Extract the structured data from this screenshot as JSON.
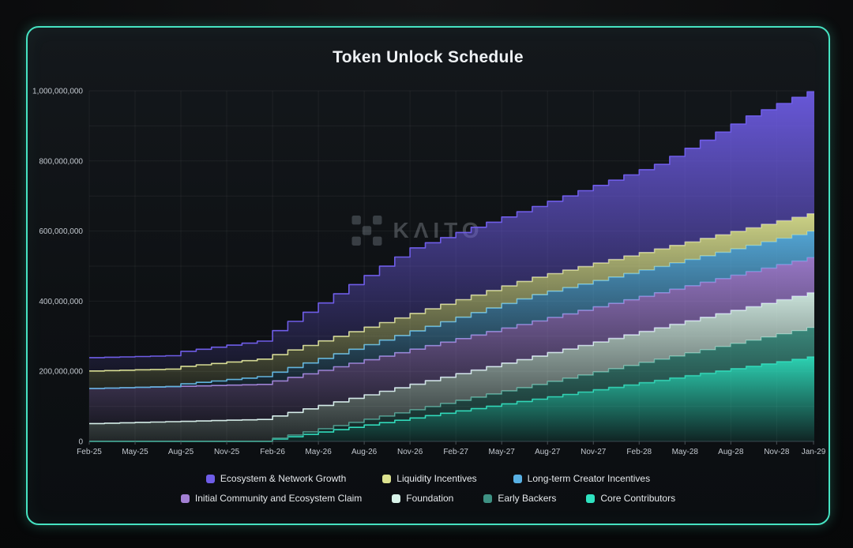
{
  "card": {
    "title": "Token Unlock Schedule",
    "watermark_text": "KΛITO",
    "border_color": "#46e3c2",
    "background": "#0e1114"
  },
  "y_axis": {
    "ticks": [
      {
        "value": 0,
        "label": "0"
      },
      {
        "value": 200,
        "label": "200,000,000"
      },
      {
        "value": 400,
        "label": "400,000,000"
      },
      {
        "value": 600,
        "label": "600,000,000"
      },
      {
        "value": 800,
        "label": "800,000,000"
      },
      {
        "value": 1000,
        "label": "1,000,000,000"
      }
    ],
    "gridline_step": 100,
    "max": 1000
  },
  "x_axis": {
    "tick_every_months": 3
  },
  "chart_data": {
    "type": "area",
    "variant": "stacked-step",
    "unit": "millions of tokens",
    "title": "Token Unlock Schedule",
    "ylim": [
      0,
      1000
    ],
    "grid": true,
    "legend_position": "bottom",
    "x": [
      "Feb-25",
      "Mar-25",
      "Apr-25",
      "May-25",
      "Jun-25",
      "Jul-25",
      "Aug-25",
      "Sep-25",
      "Oct-25",
      "Nov-25",
      "Dec-25",
      "Jan-26",
      "Feb-26",
      "Mar-26",
      "Apr-26",
      "May-26",
      "Jun-26",
      "Jul-26",
      "Aug-26",
      "Sep-26",
      "Oct-26",
      "Nov-26",
      "Dec-26",
      "Jan-27",
      "Feb-27",
      "Mar-27",
      "Apr-27",
      "May-27",
      "Jun-27",
      "Jul-27",
      "Aug-27",
      "Sep-27",
      "Oct-27",
      "Nov-27",
      "Dec-27",
      "Jan-28",
      "Feb-28",
      "Mar-28",
      "Apr-28",
      "May-28",
      "Jun-28",
      "Jul-28",
      "Aug-28",
      "Sep-28",
      "Oct-28",
      "Nov-28",
      "Dec-28",
      "Jan-29"
    ],
    "stack_order": [
      "core",
      "early",
      "foundation",
      "ic",
      "creator",
      "liquidity",
      "eng"
    ],
    "legend_rows": [
      [
        "eng",
        "liquidity",
        "creator"
      ],
      [
        "ic",
        "foundation",
        "early",
        "core"
      ]
    ],
    "series": {
      "core": {
        "name": "Core Contributors",
        "color": "#2fe2c0",
        "values": [
          0,
          0,
          0,
          0,
          0,
          0,
          0,
          0,
          0,
          0,
          0,
          0,
          6.7,
          13.4,
          20.1,
          26.8,
          33.5,
          40.2,
          46.9,
          53.6,
          60.3,
          67,
          73.7,
          80.4,
          87.1,
          93.8,
          100.5,
          107.2,
          113.9,
          120.6,
          127.3,
          134,
          140.7,
          147.4,
          154.1,
          160.8,
          167.5,
          174.2,
          180.9,
          187.6,
          194.3,
          201,
          207.7,
          214.4,
          221.1,
          227.8,
          234.5,
          241.2
        ]
      },
      "early": {
        "name": "Early Backers",
        "color": "#3e9183",
        "values": [
          0,
          0,
          0,
          0,
          0,
          0,
          0,
          0,
          0,
          0,
          0,
          0,
          2.3,
          4.6,
          6.9,
          9.2,
          11.5,
          13.8,
          16.1,
          18.4,
          20.7,
          23,
          25.3,
          27.6,
          29.9,
          32.2,
          34.5,
          36.8,
          39.1,
          41.4,
          43.7,
          46,
          48.3,
          50.6,
          52.9,
          55.2,
          57.5,
          59.8,
          62.1,
          64.4,
          66.7,
          69,
          71.3,
          73.6,
          75.9,
          78.2,
          80.5,
          82.8
        ]
      },
      "foundation": {
        "name": "Foundation",
        "color": "#d8f3e9",
        "values": [
          51,
          52.1,
          53.1,
          54.2,
          55.2,
          56.3,
          57.3,
          58.4,
          59.4,
          60.5,
          61.5,
          62.6,
          63.6,
          64.7,
          65.7,
          66.8,
          67.8,
          68.9,
          69.9,
          71,
          72,
          73.1,
          74.1,
          75.2,
          76.2,
          77.3,
          78.3,
          79.4,
          80.4,
          81.5,
          82.5,
          83.6,
          84.6,
          85.7,
          86.7,
          87.8,
          88.8,
          89.9,
          90.9,
          92,
          93,
          94.1,
          95.1,
          96.2,
          97.2,
          98.3,
          99.3,
          100
        ]
      },
      "ic": {
        "name": "Initial Community and Ecosystem Claim",
        "color": "#a27fd3",
        "values": [
          100,
          100,
          100,
          100,
          100,
          100,
          100,
          100,
          100,
          100,
          100,
          100,
          100,
          100,
          100,
          100,
          100,
          100,
          100,
          100,
          100,
          100,
          100,
          100,
          100,
          100,
          100,
          100,
          100,
          100,
          100,
          100,
          100,
          100,
          100,
          100,
          100,
          100,
          100,
          100,
          100,
          100,
          100,
          100,
          100,
          100,
          100,
          100
        ]
      },
      "creator": {
        "name": "Long-term Creator Incentives",
        "color": "#58b0e3",
        "values": [
          0,
          0,
          0,
          0,
          0,
          0,
          7,
          10,
          13,
          16,
          19,
          22,
          25,
          28,
          31,
          34,
          37,
          40,
          43,
          46,
          49,
          52,
          55,
          58,
          61,
          64,
          67,
          70,
          73,
          75,
          75,
          75,
          75,
          75,
          75,
          75,
          75,
          75,
          75,
          75,
          75,
          75,
          75,
          75,
          75,
          75,
          75,
          75
        ]
      },
      "liquidity": {
        "name": "Liquidity Incentives",
        "color": "#dce28f",
        "values": [
          50,
          50,
          50,
          50,
          50,
          50,
          50,
          50,
          50,
          50,
          50,
          50,
          50,
          50,
          50,
          50,
          50,
          50,
          50,
          50,
          50,
          50,
          50,
          50,
          50,
          50,
          50,
          50,
          50,
          50,
          50,
          50,
          50,
          50,
          50,
          50,
          50,
          50,
          50,
          50,
          50,
          50,
          50,
          50,
          50,
          50,
          50,
          50
        ]
      },
      "eng": {
        "name": "Ecosystem & Network Growth",
        "color": "#6f5de8",
        "values": [
          38,
          38,
          38,
          38,
          38,
          38,
          42.7,
          44.5,
          46.2,
          48,
          49.7,
          51.5,
          68.4,
          81.6,
          94.7,
          108,
          121.1,
          134.3,
          147.4,
          160.7,
          173.8,
          187,
          188.6,
          190.2,
          191.8,
          193.5,
          195,
          196.7,
          198.6,
          201.6,
          206.5,
          211.5,
          216.4,
          221.4,
          226.3,
          231.3,
          236.2,
          241.2,
          254.1,
          267.1,
          280,
          293,
          305.9,
          318.9,
          326.6,
          334.3,
          342,
          348
        ]
      }
    }
  }
}
